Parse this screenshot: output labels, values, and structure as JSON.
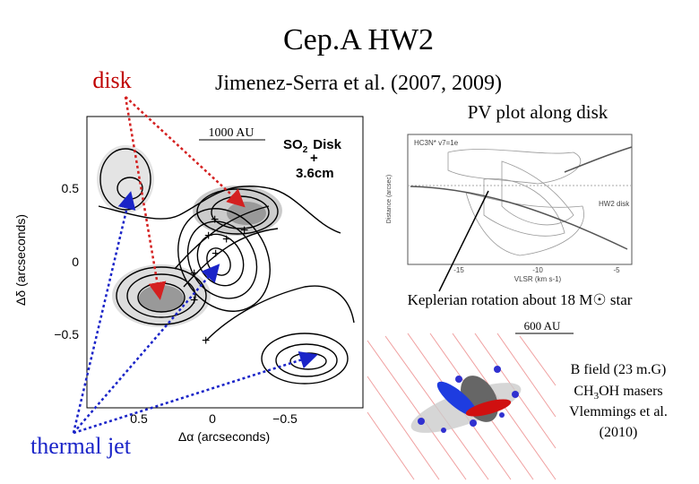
{
  "title": "Cep.A HW2",
  "labels": {
    "disk": "disk",
    "thermal_jet": "thermal jet",
    "reference": "Jimenez-Serra et al. (2007, 2009)",
    "pv_caption": "PV plot along disk",
    "keplerian": "Keplerian rotation about 18 M☉ star",
    "scale_600": "600 AU"
  },
  "contour_map": {
    "scale_bar": "1000 AU",
    "legend_so": "SO",
    "legend_sub": "2",
    "legend_disk": "Disk",
    "legend_plus": "+",
    "legend_cm": "3.6cm",
    "y_ticks": [
      "0.5",
      "0",
      "−0.5"
    ],
    "x_ticks": [
      "0.5",
      "0",
      "−0.5"
    ],
    "y_label": "Δδ (arcseconds)",
    "x_label": "Δα (arcseconds)"
  },
  "pv_plot": {
    "line_label": "HC3N* v7=1e",
    "disk_label": "HW2 disk",
    "y_label": "Distance (arcsec)",
    "x_ticks": [
      "-15",
      "-10",
      "-5"
    ],
    "x_label": "VLSR (km s-1)"
  },
  "maser_model": {
    "line1": "B field (23 m.G)",
    "line2_a": "CH",
    "line2_sub": "3",
    "line2_b": "OH masers",
    "line3": "Vlemmings et al.",
    "line4": "(2010)"
  }
}
